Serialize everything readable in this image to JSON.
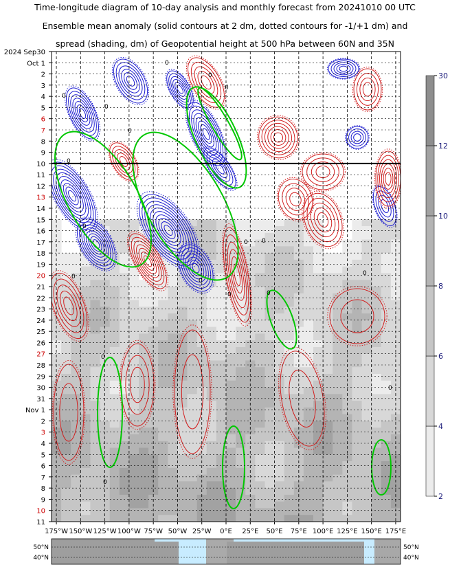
{
  "chart_data": {
    "type": "heatmap",
    "title_lines": [
      "Time-longitude diagram of 10-day analysis and monthly forecast from 20241010 00 UTC",
      "Ensemble mean anomaly (solid contours at 2 dm, dotted contours for -1/+1 dm) and",
      "spread (shading, dm) of Geopotential height at 500 hPa between 60N and 35N"
    ],
    "x_ticks": [
      "175°W",
      "150°W",
      "125°W",
      "100°W",
      "75°W",
      "50°W",
      "25°W",
      "0°E",
      "25°E",
      "50°E",
      "75°E",
      "100°E",
      "125°E",
      "150°E",
      "175°E"
    ],
    "x_range": [
      -180,
      180
    ],
    "y_labels": [
      {
        "label": "2024 Sep30",
        "color": "#000000"
      },
      {
        "label": "Oct  1",
        "color": "#000000"
      },
      {
        "label": "2",
        "color": "#000000"
      },
      {
        "label": "3",
        "color": "#000000"
      },
      {
        "label": "4",
        "color": "#000000"
      },
      {
        "label": "5",
        "color": "#000000"
      },
      {
        "label": "6",
        "color": "#cc0000"
      },
      {
        "label": "7",
        "color": "#cc0000"
      },
      {
        "label": "8",
        "color": "#000000"
      },
      {
        "label": "9",
        "color": "#000000"
      },
      {
        "label": "10",
        "color": "#000000"
      },
      {
        "label": "11",
        "color": "#000000"
      },
      {
        "label": "12",
        "color": "#000000"
      },
      {
        "label": "13",
        "color": "#cc0000"
      },
      {
        "label": "14",
        "color": "#000000"
      },
      {
        "label": "15",
        "color": "#000000"
      },
      {
        "label": "16",
        "color": "#000000"
      },
      {
        "label": "17",
        "color": "#000000"
      },
      {
        "label": "18",
        "color": "#000000"
      },
      {
        "label": "19",
        "color": "#000000"
      },
      {
        "label": "20",
        "color": "#cc0000"
      },
      {
        "label": "21",
        "color": "#000000"
      },
      {
        "label": "22",
        "color": "#000000"
      },
      {
        "label": "23",
        "color": "#000000"
      },
      {
        "label": "24",
        "color": "#000000"
      },
      {
        "label": "25",
        "color": "#000000"
      },
      {
        "label": "26",
        "color": "#000000"
      },
      {
        "label": "27",
        "color": "#cc0000"
      },
      {
        "label": "28",
        "color": "#000000"
      },
      {
        "label": "29",
        "color": "#000000"
      },
      {
        "label": "30",
        "color": "#000000"
      },
      {
        "label": "31",
        "color": "#000000"
      },
      {
        "label": "Nov  1",
        "color": "#000000"
      },
      {
        "label": "2",
        "color": "#000000"
      },
      {
        "label": "3",
        "color": "#cc0000"
      },
      {
        "label": "4",
        "color": "#000000"
      },
      {
        "label": "5",
        "color": "#000000"
      },
      {
        "label": "6",
        "color": "#000000"
      },
      {
        "label": "7",
        "color": "#000000"
      },
      {
        "label": "8",
        "color": "#000000"
      },
      {
        "label": "9",
        "color": "#000000"
      },
      {
        "label": "10",
        "color": "#cc0000"
      },
      {
        "label": "11",
        "color": "#000000"
      }
    ],
    "analysis_forecast_divider_day": 10,
    "colorbar": {
      "levels": [
        2,
        4,
        6,
        8,
        10,
        12,
        30
      ],
      "colors": [
        "#ececec",
        "#d8d8d8",
        "#c6c6c6",
        "#b4b4b4",
        "#a2a2a2",
        "#8e8e8e"
      ]
    },
    "map_strip_labels": {
      "lat_top": "50°N",
      "lat_bottom": "40°N"
    },
    "contour_labels": [
      "0"
    ],
    "series_colors": {
      "positive": "#d22020",
      "negative": "#1c1cd0",
      "zero": "#00c800"
    }
  }
}
